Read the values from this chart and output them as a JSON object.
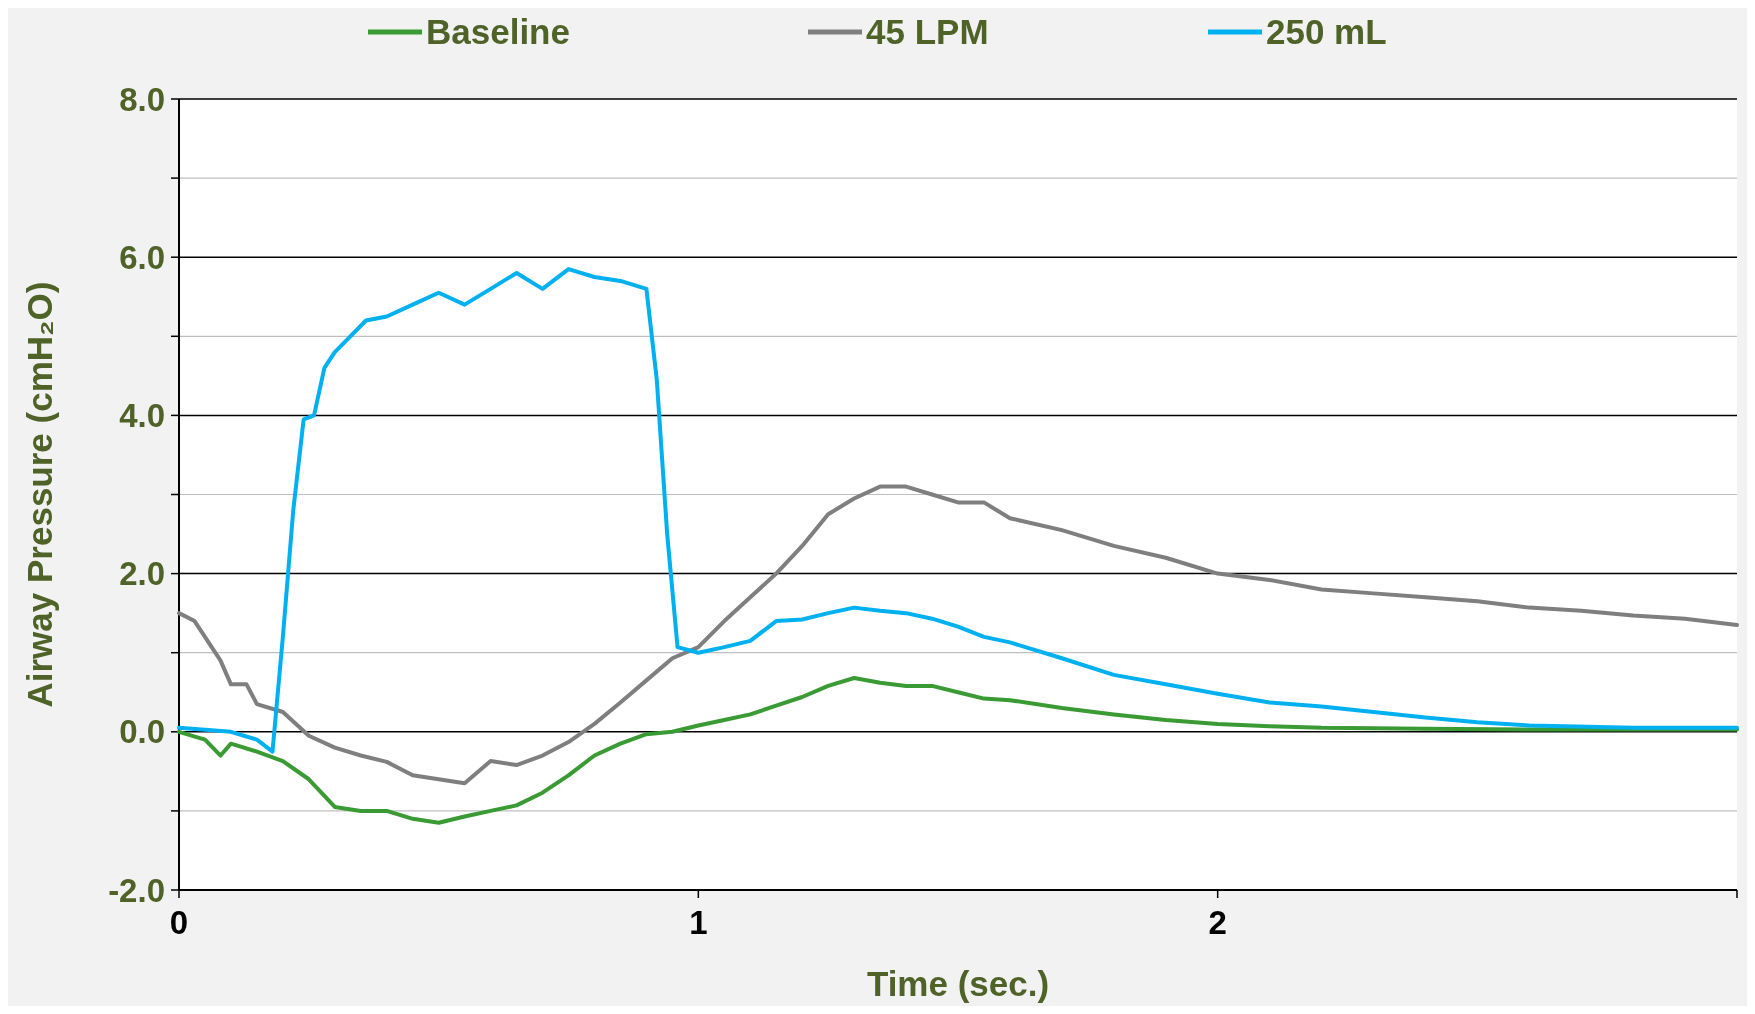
{
  "chart_data": {
    "type": "line",
    "xlabel": "Time (sec.)",
    "ylabel": "Airway Pressure (cmH₂O)",
    "xlim": [
      0,
      3
    ],
    "xticks": [
      0,
      1,
      2,
      {
        "value": 3,
        "label": null
      }
    ],
    "ylim": [
      -2,
      8
    ],
    "yticks": [
      {
        "value": -2,
        "label": "-2.0"
      },
      {
        "value": -1,
        "label": null
      },
      {
        "value": 0,
        "label": "0.0"
      },
      {
        "value": 1,
        "label": null
      },
      {
        "value": 2,
        "label": "2.0"
      },
      {
        "value": 3,
        "label": null
      },
      {
        "value": 4,
        "label": "4.0"
      },
      {
        "value": 5,
        "label": null
      },
      {
        "value": 6,
        "label": "6.0"
      },
      {
        "value": 7,
        "label": null
      },
      {
        "value": 8,
        "label": "8.0"
      }
    ],
    "grid": "y",
    "legend": "top",
    "marker": "none",
    "line_style": "solid",
    "series": [
      {
        "name": "Baseline",
        "color": "#3a9a33",
        "x": [
          0,
          0.05,
          0.08,
          0.1,
          0.15,
          0.2,
          0.25,
          0.3,
          0.35,
          0.4,
          0.45,
          0.5,
          0.55,
          0.6,
          0.65,
          0.7,
          0.75,
          0.8,
          0.85,
          0.9,
          0.95,
          1.0,
          1.05,
          1.1,
          1.15,
          1.2,
          1.25,
          1.3,
          1.35,
          1.4,
          1.45,
          1.5,
          1.55,
          1.6,
          1.7,
          1.8,
          1.9,
          2.0,
          2.1,
          2.2,
          2.4,
          2.6,
          2.8,
          3.0
        ],
        "values": [
          0,
          -0.1,
          -0.3,
          -0.15,
          -0.25,
          -0.37,
          -0.6,
          -0.95,
          -1.0,
          -1.0,
          -1.1,
          -1.15,
          -1.07,
          -1.0,
          -0.93,
          -0.77,
          -0.55,
          -0.3,
          -0.15,
          -0.03,
          0,
          0.08,
          0.15,
          0.22,
          0.33,
          0.44,
          0.58,
          0.68,
          0.62,
          0.58,
          0.58,
          0.5,
          0.42,
          0.4,
          0.3,
          0.22,
          0.15,
          0.1,
          0.07,
          0.05,
          0.04,
          0.03,
          0.03,
          0.03
        ]
      },
      {
        "name": "45 LPM",
        "color": "#7f7f7f",
        "x": [
          0,
          0.03,
          0.05,
          0.08,
          0.1,
          0.13,
          0.15,
          0.2,
          0.25,
          0.3,
          0.35,
          0.4,
          0.45,
          0.5,
          0.55,
          0.6,
          0.65,
          0.7,
          0.75,
          0.8,
          0.85,
          0.9,
          0.95,
          1.0,
          1.05,
          1.1,
          1.15,
          1.2,
          1.25,
          1.3,
          1.35,
          1.4,
          1.45,
          1.5,
          1.55,
          1.6,
          1.7,
          1.8,
          1.9,
          2.0,
          2.1,
          2.2,
          2.3,
          2.4,
          2.5,
          2.6,
          2.7,
          2.8,
          2.9,
          3.0
        ],
        "values": [
          1.5,
          1.4,
          1.2,
          0.9,
          0.6,
          0.6,
          0.35,
          0.25,
          -0.05,
          -0.2,
          -0.3,
          -0.38,
          -0.55,
          -0.6,
          -0.65,
          -0.37,
          -0.42,
          -0.3,
          -0.13,
          0.1,
          0.37,
          0.65,
          0.93,
          1.07,
          1.4,
          1.7,
          2.0,
          2.35,
          2.75,
          2.95,
          3.1,
          3.1,
          3.0,
          2.9,
          2.9,
          2.7,
          2.55,
          2.35,
          2.2,
          2.0,
          1.92,
          1.8,
          1.75,
          1.7,
          1.65,
          1.57,
          1.53,
          1.47,
          1.43,
          1.35
        ]
      },
      {
        "name": "250 mL",
        "color": "#00b0f0",
        "x": [
          0,
          0.1,
          0.15,
          0.18,
          0.2,
          0.22,
          0.24,
          0.26,
          0.28,
          0.3,
          0.33,
          0.36,
          0.4,
          0.45,
          0.5,
          0.55,
          0.6,
          0.65,
          0.7,
          0.75,
          0.8,
          0.85,
          0.9,
          0.92,
          0.94,
          0.96,
          1.0,
          1.05,
          1.1,
          1.15,
          1.2,
          1.25,
          1.3,
          1.35,
          1.4,
          1.45,
          1.5,
          1.55,
          1.6,
          1.7,
          1.8,
          1.9,
          2.0,
          2.1,
          2.2,
          2.3,
          2.4,
          2.5,
          2.6,
          2.8,
          3.0
        ],
        "values": [
          0.05,
          0,
          -0.1,
          -0.25,
          1.2,
          2.8,
          3.95,
          4.0,
          4.6,
          4.8,
          5.0,
          5.2,
          5.25,
          5.4,
          5.55,
          5.4,
          5.6,
          5.8,
          5.6,
          5.85,
          5.75,
          5.7,
          5.6,
          4.45,
          2.5,
          1.07,
          1.0,
          1.07,
          1.15,
          1.4,
          1.42,
          1.5,
          1.57,
          1.53,
          1.5,
          1.43,
          1.33,
          1.2,
          1.13,
          0.93,
          0.72,
          0.6,
          0.48,
          0.37,
          0.32,
          0.25,
          0.18,
          0.12,
          0.08,
          0.05,
          0.05
        ]
      }
    ]
  }
}
